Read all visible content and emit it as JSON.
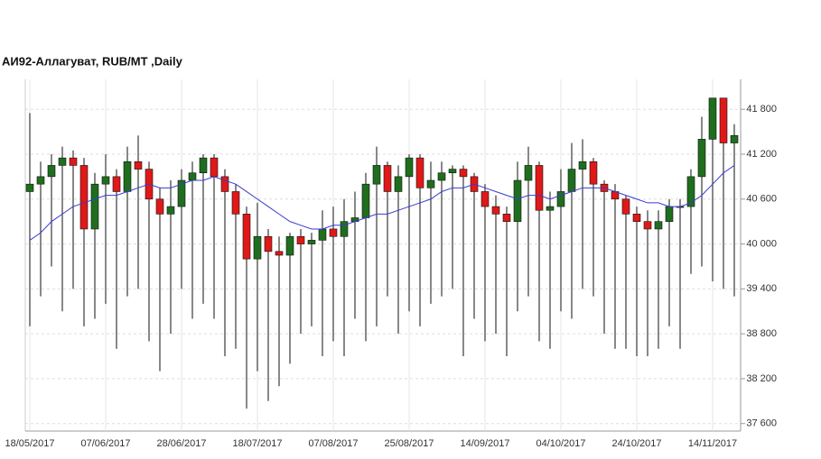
{
  "chart_data": {
    "type": "candlestick",
    "title": "АИ92-Аллагуват,  RUB/MT ,Daily",
    "categories": [
      "18/05/2017",
      null,
      null,
      null,
      null,
      null,
      null,
      "07/06/2017",
      null,
      null,
      null,
      null,
      null,
      null,
      "28/06/2017",
      null,
      null,
      null,
      null,
      null,
      null,
      "18/07/2017",
      null,
      null,
      null,
      null,
      null,
      null,
      "07/08/2017",
      null,
      null,
      null,
      null,
      null,
      null,
      "25/08/2017",
      null,
      null,
      null,
      null,
      null,
      null,
      "14/09/2017",
      null,
      null,
      null,
      null,
      null,
      null,
      "04/10/2017",
      null,
      null,
      null,
      null,
      null,
      null,
      "24/10/2017",
      null,
      null,
      null,
      null,
      null,
      null,
      "14/11/2017",
      null,
      null
    ],
    "open": [
      40700,
      40800,
      40900,
      41050,
      41150,
      41050,
      40200,
      40800,
      40900,
      40700,
      41100,
      41000,
      40600,
      40400,
      40500,
      40850,
      40950,
      41150,
      40900,
      40700,
      40400,
      39800,
      40100,
      39900,
      39850,
      40100,
      40000,
      40050,
      40200,
      40100,
      40300,
      40350,
      40800,
      41050,
      40700,
      40900,
      41150,
      40750,
      40850,
      40950,
      41000,
      40900,
      40700,
      40500,
      40400,
      40300,
      40850,
      41050,
      40450,
      40500,
      40700,
      41000,
      41100,
      40800,
      40700,
      40600,
      40400,
      40300,
      40200,
      40300,
      40500,
      40500,
      40900,
      41400,
      41950,
      41350
    ],
    "high": [
      41750,
      41100,
      41200,
      41300,
      41250,
      41150,
      40950,
      41200,
      41000,
      41300,
      41450,
      41100,
      40750,
      40850,
      41000,
      41100,
      41200,
      41200,
      41000,
      40800,
      40500,
      40550,
      40200,
      40100,
      40150,
      40200,
      40150,
      40450,
      40500,
      40600,
      40700,
      40950,
      41300,
      41100,
      41050,
      41200,
      41200,
      41100,
      41100,
      41050,
      41050,
      40950,
      40800,
      40650,
      40500,
      41100,
      41300,
      41100,
      40700,
      41000,
      41350,
      41400,
      41150,
      40850,
      40800,
      40650,
      40500,
      40450,
      40450,
      40600,
      40600,
      41000,
      41700,
      41950,
      41950,
      41600
    ],
    "low": [
      38900,
      39300,
      39700,
      39100,
      39400,
      38900,
      39000,
      39200,
      38600,
      39300,
      39400,
      38700,
      38300,
      38800,
      39400,
      39000,
      39200,
      39000,
      38500,
      38600,
      37800,
      38300,
      37900,
      38100,
      38400,
      38800,
      38900,
      38500,
      38700,
      38500,
      39000,
      38700,
      38900,
      39300,
      38800,
      39100,
      38900,
      39200,
      39300,
      39400,
      38500,
      39000,
      38700,
      38800,
      38500,
      39100,
      39300,
      38700,
      38600,
      39100,
      39000,
      39400,
      39300,
      38800,
      38600,
      38600,
      38500,
      38500,
      38600,
      38900,
      38600,
      39600,
      39700,
      39500,
      39400,
      39300
    ],
    "close": [
      40800,
      40900,
      41050,
      41150,
      41050,
      40200,
      40800,
      40900,
      40700,
      41100,
      41000,
      40600,
      40400,
      40500,
      40850,
      40950,
      41150,
      40900,
      40700,
      40400,
      39800,
      40100,
      39900,
      39850,
      40100,
      40000,
      40050,
      40200,
      40100,
      40300,
      40350,
      40800,
      41050,
      40700,
      40900,
      41150,
      40750,
      40850,
      40950,
      41000,
      40900,
      40700,
      40500,
      40400,
      40300,
      40850,
      41050,
      40450,
      40500,
      40700,
      41000,
      41100,
      40800,
      40700,
      40600,
      40400,
      40300,
      40200,
      40300,
      40500,
      40500,
      40900,
      41400,
      41950,
      41350,
      41450
    ],
    "ma": [
      40050,
      40150,
      40300,
      40400,
      40500,
      40550,
      40600,
      40650,
      40650,
      40700,
      40750,
      40800,
      40750,
      40750,
      40800,
      40850,
      40850,
      40900,
      40850,
      40800,
      40700,
      40600,
      40500,
      40400,
      40300,
      40250,
      40200,
      40200,
      40250,
      40250,
      40300,
      40350,
      40400,
      40400,
      40450,
      40500,
      40550,
      40600,
      40700,
      40750,
      40750,
      40800,
      40750,
      40700,
      40650,
      40600,
      40650,
      40650,
      40600,
      40650,
      40700,
      40750,
      40750,
      40750,
      40700,
      40650,
      40600,
      40550,
      40550,
      40500,
      40500,
      40550,
      40650,
      40800,
      40950,
      41050
    ],
    "up_color": "#1e6e1e",
    "down_color": "#e01818",
    "ma_color": "#3a3ad0",
    "ylim": [
      37500,
      42200
    ],
    "yticks": [
      {
        "value": 37600,
        "label": "37 600"
      },
      {
        "value": 38200,
        "label": "38 200"
      },
      {
        "value": 38800,
        "label": "38 800"
      },
      {
        "value": 39400,
        "label": "39 400"
      },
      {
        "value": 40000,
        "label": "40 000"
      },
      {
        "value": 40600,
        "label": "40 600"
      },
      {
        "value": 41200,
        "label": "41 200"
      },
      {
        "value": 41800,
        "label": "41 800"
      }
    ],
    "grid": true
  }
}
